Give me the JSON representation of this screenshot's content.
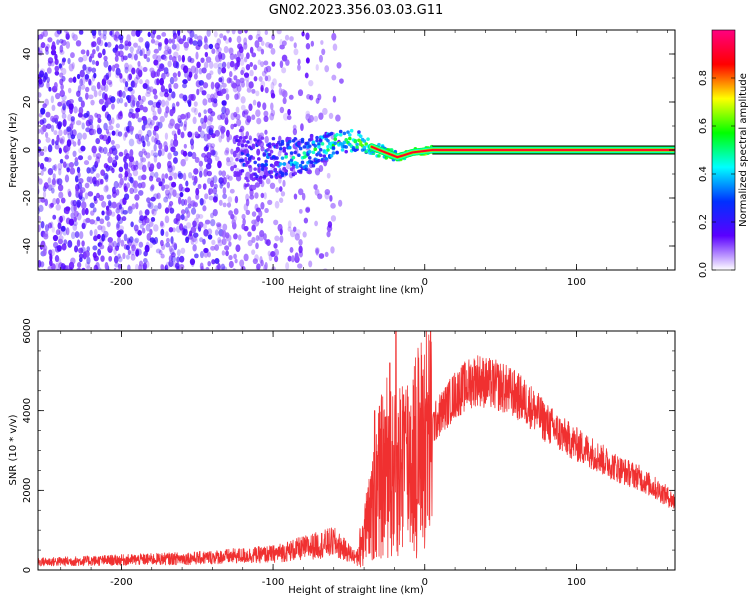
{
  "title": "GN02.2023.356.03.03.G11",
  "chart_data": [
    {
      "type": "heatmap",
      "xlabel": "Height of straight line (km)",
      "ylabel": "Frequency (Hz)",
      "xlim": [
        -255,
        165
      ],
      "ylim": [
        -50,
        50
      ],
      "xticks": [
        -200,
        -100,
        0,
        100
      ],
      "yticks": [
        -40,
        -20,
        0,
        20,
        40
      ],
      "grid": false,
      "colorbar": {
        "label": "Normalized spectral amplitude",
        "range": [
          0,
          1
        ],
        "ticks": [
          0.0,
          0.2,
          0.4,
          0.6,
          0.8
        ],
        "colors": [
          "#ffffff",
          "#5a00ff",
          "#0030ff",
          "#00ffff",
          "#00ff00",
          "#ffff00",
          "#ff0000",
          "#ff0080"
        ]
      },
      "features": {
        "noise_region_x": [
          -255,
          -55
        ],
        "dense_noise_x": [
          -255,
          -130
        ],
        "transition_x": [
          -125,
          5
        ],
        "tone_start_x": 5,
        "tone_frequency": 0,
        "tone_trace": [
          {
            "x": -120,
            "f": -5
          },
          {
            "x": -100,
            "f": -4
          },
          {
            "x": -80,
            "f": -2
          },
          {
            "x": -60,
            "f": 3
          },
          {
            "x": -45,
            "f": 4
          },
          {
            "x": -30,
            "f": 0
          },
          {
            "x": -18,
            "f": -3
          },
          {
            "x": -8,
            "f": -1
          },
          {
            "x": 5,
            "f": 0
          },
          {
            "x": 165,
            "f": 0
          }
        ]
      }
    },
    {
      "type": "line",
      "xlabel": "Height of straight line (km)",
      "ylabel": "SNR (10 * v/v)",
      "xlim": [
        -255,
        165
      ],
      "ylim": [
        0,
        6000
      ],
      "xticks": [
        -200,
        -100,
        0,
        100
      ],
      "yticks": [
        0,
        2000,
        4000,
        6000
      ],
      "grid": false,
      "series": [
        {
          "color": "#f03030",
          "x": [
            -255,
            -200,
            -150,
            -100,
            -80,
            -60,
            -45,
            -40,
            -35,
            -30,
            -25,
            -20,
            -15,
            -10,
            -5,
            0,
            10,
            20,
            30,
            35,
            40,
            50,
            60,
            70,
            80,
            90,
            100,
            110,
            120,
            130,
            140,
            150,
            160,
            165
          ],
          "y": [
            200,
            250,
            300,
            400,
            550,
            700,
            300,
            900,
            1400,
            2200,
            2600,
            2300,
            2700,
            2800,
            3000,
            3300,
            3900,
            4400,
            4700,
            4800,
            4700,
            4600,
            4400,
            4100,
            3700,
            3400,
            3150,
            2950,
            2700,
            2500,
            2350,
            2100,
            1850,
            1700
          ]
        }
      ],
      "spikes": [
        {
          "x": -33,
          "y": 4000
        },
        {
          "x": -23,
          "y": 5200
        },
        {
          "x": -19,
          "y": 6000
        },
        {
          "x": -14,
          "y": 4400
        }
      ]
    }
  ]
}
